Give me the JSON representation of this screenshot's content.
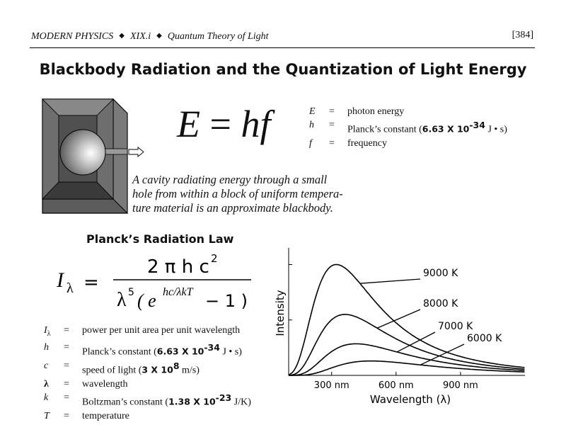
{
  "header": {
    "course": "MODERN PHYSICS",
    "section": "XIX.i",
    "topic": "Quantum Theory of Light",
    "page": "[384]"
  },
  "title": "Blackbody Radiation and the Quantization of Light Energy",
  "equation": {
    "E": "E",
    "eq": "=",
    "hf": "hf"
  },
  "energy_definitions": [
    {
      "symbol": "E",
      "eq": "=",
      "text": "photon energy"
    },
    {
      "symbol": "h",
      "eq": "=",
      "text_pre": "Planck’s constant (",
      "value": "6.63 X 10",
      "exp": "-34",
      "unit": " J • s)"
    },
    {
      "symbol": "f",
      "eq": "=",
      "text": "frequency"
    }
  ],
  "caption_lines": [
    "A cavity radiating energy through a small",
    "hole from within a block of uniform tempera-",
    "ture material is an approximate blackbody."
  ],
  "planck": {
    "title": "Planck’s Radiation Law",
    "lhs": "I",
    "lhs_sub": "λ",
    "eq": "=",
    "num": "2 π h c",
    "num_exp": "2",
    "den_lambda": "λ",
    "den_exp5": "5",
    "den_open": "( e",
    "den_exp": "hc/λkT",
    "den_close": "− 1 )"
  },
  "planck_definitions": [
    {
      "symbol": "I",
      "sub": "λ",
      "eq": "=",
      "text": "power per unit area per unit wavelength"
    },
    {
      "symbol": "h",
      "eq": "=",
      "text_pre": "Planck’s constant (",
      "value": "6.63 X 10",
      "exp": "-34",
      "unit": " J • s)"
    },
    {
      "symbol": "c",
      "eq": "=",
      "text_pre": "speed of light (",
      "value": "3 X 10",
      "exp": "8",
      "unit": " m/s)"
    },
    {
      "symbol": "λ",
      "eq": "=",
      "text": "wavelength"
    },
    {
      "symbol": "k",
      "eq": "=",
      "text_pre": "Boltzman’s constant (",
      "value": "1.38 X 10",
      "exp": "-23",
      "unit": " J/K)"
    },
    {
      "symbol": "T",
      "eq": "=",
      "text": "temperature"
    }
  ],
  "chart_data": {
    "type": "line",
    "xlabel": "Wavelength (λ)",
    "ylabel": "Intensity",
    "xlim": [
      100,
      1200
    ],
    "ylim": [
      0,
      1.15
    ],
    "x_ticks": [
      300,
      600,
      900
    ],
    "x_tick_labels": [
      "300 nm",
      "600 nm",
      "900 nm"
    ],
    "grid": false,
    "series": [
      {
        "name": "9000 K",
        "temperature": 9000,
        "peak_x": 322,
        "peak_y": 1.0
      },
      {
        "name": "8000 K",
        "temperature": 8000,
        "peak_x": 362,
        "peak_y": 0.55
      },
      {
        "name": "7000 K",
        "temperature": 7000,
        "peak_x": 414,
        "peak_y": 0.285
      },
      {
        "name": "6000 K",
        "temperature": 6000,
        "peak_x": 483,
        "peak_y": 0.13
      }
    ]
  }
}
